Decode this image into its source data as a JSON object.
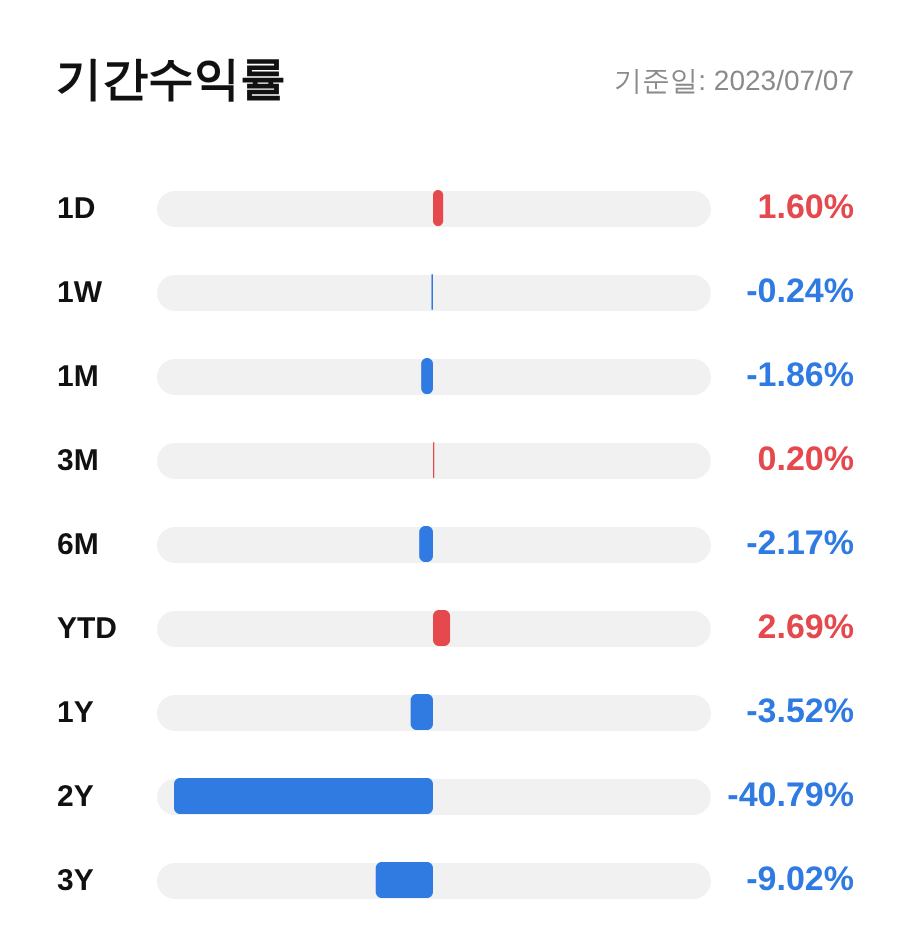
{
  "chart_data": {
    "type": "bar",
    "orientation": "horizontal",
    "title": "기간수익률",
    "subtitle": "기준일: 2023/07/07",
    "categories": [
      "1D",
      "1W",
      "1M",
      "3M",
      "6M",
      "YTD",
      "1Y",
      "2Y",
      "3Y"
    ],
    "values": [
      1.6,
      -0.24,
      -1.86,
      0.2,
      -2.17,
      2.69,
      -3.52,
      -40.79,
      -9.02
    ],
    "colors": [
      "#e5484d",
      "#2f7be2",
      "#2f7be2",
      "#e5484d",
      "#2f7be2",
      "#e5484d",
      "#2f7be2",
      "#2f7be2",
      "#2f7be2"
    ],
    "value_labels": [
      "1.60%",
      "-0.24%",
      "-1.86%",
      "0.20%",
      "-2.17%",
      "2.69%",
      "-3.52%",
      "-40.79%",
      "-9.02%"
    ],
    "grid": "y"
  }
}
